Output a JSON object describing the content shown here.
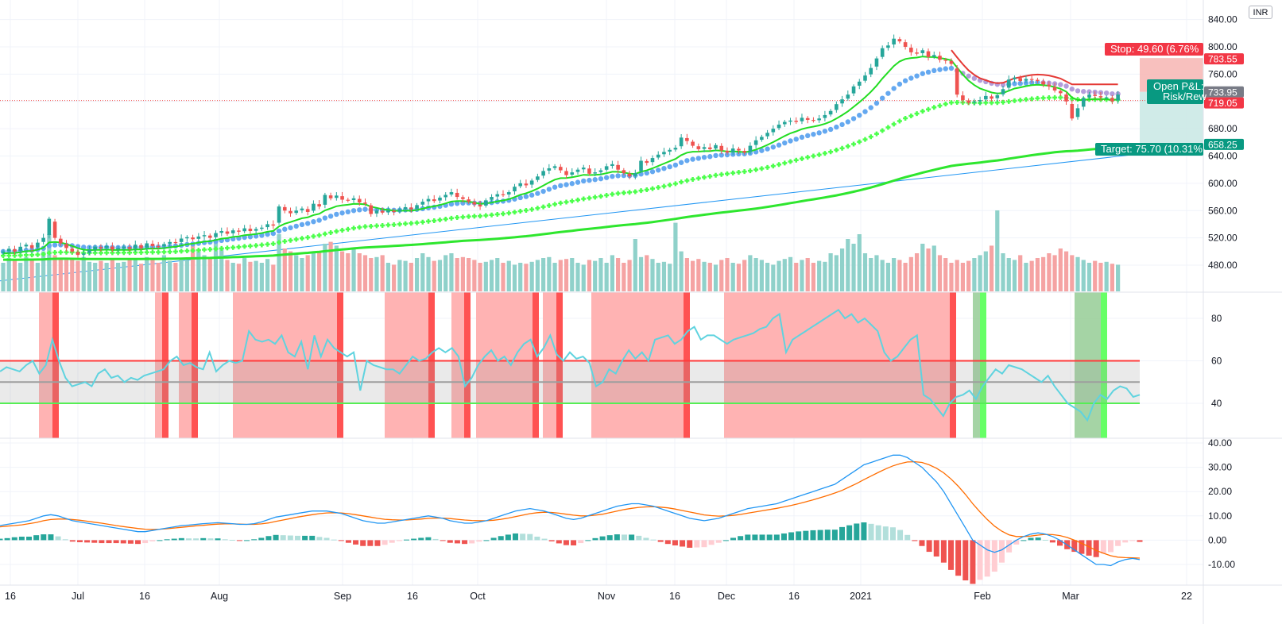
{
  "currency_label": "INR",
  "colors": {
    "up": "#26a69a",
    "down": "#ef5350",
    "up_candle": "#26a69a",
    "down_candle": "#ef5350",
    "band": "#ffb3b3",
    "band_dark": "#ff5252",
    "band_green": "#66ff66",
    "rsi_line": "#5fd3df",
    "macd_line": "#2196f3",
    "signal_line": "#ff6d00",
    "ema_green": "#2ee62e",
    "ema_blue": "#64a8f0",
    "trend_line": "#2196f3",
    "stop_fill": "#f7b9b7",
    "target_fill": "#cbe9e6",
    "tag_red": "#f23645",
    "tag_teal": "#089981"
  },
  "time_axis_labels": [
    "16",
    "Jul",
    "16",
    "Aug",
    "Sep",
    "16",
    "Oct",
    "Nov",
    "16",
    "Dec",
    "16",
    "2021",
    "Feb",
    "Mar",
    "22"
  ],
  "price_axis_labels": [
    "840.00",
    "800.00",
    "760.00",
    "720.00",
    "680.00",
    "640.00",
    "600.00",
    "560.00",
    "520.00",
    "480.00"
  ],
  "rsi_axis_labels": [
    "80",
    "60",
    "40"
  ],
  "macd_axis_labels": [
    "40.00",
    "30.00",
    "20.00",
    "10.00",
    "0.00",
    "-10.00"
  ],
  "position": {
    "stop_label": "Stop: 49.60 (6.76%",
    "target_label": "Target: 75.70 (10.31%",
    "open_pl_label": "Open P&L:",
    "risk_reward_label": "Risk/Rew",
    "stop_price": 783.55,
    "entry_price": 733.95,
    "current_price": 719.05,
    "target_price": 658.25
  },
  "price_tags": [
    "783.55",
    "733.95",
    "719.05",
    "658.25"
  ],
  "rsi_levels": {
    "upper": 60,
    "middle": 50,
    "lower": 40
  },
  "chart_data": [
    {
      "type": "candlestick",
      "title": "",
      "x_range": [
        "2020-06-16",
        "2021-03-22"
      ],
      "ylim": [
        455,
        845
      ],
      "closes": [
        500,
        504,
        500,
        507,
        510,
        505,
        513,
        520,
        548,
        520,
        512,
        505,
        500,
        495,
        497,
        502,
        507,
        505,
        508,
        503,
        505,
        507,
        504,
        510,
        505,
        512,
        508,
        507,
        511,
        514,
        513,
        519,
        521,
        518,
        522,
        524,
        520,
        527,
        530,
        526,
        531,
        529,
        534,
        530,
        533,
        535,
        540,
        538,
        566,
        560,
        556,
        560,
        563,
        558,
        570,
        566,
        583,
        578,
        582,
        576,
        575,
        578,
        572,
        570,
        555,
        560,
        557,
        560,
        558,
        562,
        565,
        562,
        568,
        573,
        577,
        574,
        579,
        583,
        587,
        580,
        577,
        573,
        569,
        566,
        575,
        580,
        584,
        583,
        587,
        595,
        600,
        597,
        604,
        610,
        618,
        622,
        625,
        619,
        612,
        616,
        620,
        623,
        614,
        616,
        619,
        625,
        628,
        620,
        615,
        610,
        615,
        633,
        630,
        637,
        642,
        646,
        649,
        652,
        667,
        662,
        655,
        650,
        653,
        650,
        656,
        648,
        645,
        651,
        648,
        645,
        655,
        663,
        668,
        674,
        680,
        686,
        690,
        692,
        690,
        696,
        693,
        692,
        695,
        700,
        706,
        716,
        723,
        730,
        742,
        749,
        758,
        769,
        783,
        798,
        802,
        812,
        808,
        800,
        792,
        790,
        795,
        785,
        788,
        781,
        780,
        775,
        730,
        722,
        718,
        720,
        722,
        728,
        724,
        729,
        738,
        752,
        755,
        750,
        753,
        752,
        750,
        745,
        742,
        736,
        732,
        720,
        695,
        710,
        725,
        730,
        728,
        726,
        726,
        720,
        730
      ],
      "volume_relative": [
        0.3,
        0.35,
        0.32,
        0.3,
        0.36,
        0.33,
        0.3,
        0.42,
        0.6,
        0.38,
        0.35,
        0.33,
        0.34,
        0.32,
        0.36,
        0.31,
        0.3,
        0.32,
        0.3,
        0.33,
        0.3,
        0.31,
        0.35,
        0.33,
        0.29,
        0.36,
        0.34,
        0.3,
        0.38,
        0.32,
        0.3,
        0.35,
        0.33,
        0.5,
        0.42,
        0.38,
        0.36,
        0.55,
        0.45,
        0.33,
        0.3,
        0.29,
        0.35,
        0.31,
        0.32,
        0.3,
        0.34,
        0.28,
        0.6,
        0.45,
        0.42,
        0.38,
        0.35,
        0.38,
        0.4,
        0.42,
        0.5,
        0.52,
        0.48,
        0.42,
        0.4,
        0.45,
        0.4,
        0.38,
        0.35,
        0.36,
        0.38,
        0.3,
        0.28,
        0.33,
        0.32,
        0.3,
        0.35,
        0.4,
        0.36,
        0.32,
        0.33,
        0.38,
        0.4,
        0.35,
        0.36,
        0.35,
        0.33,
        0.3,
        0.31,
        0.33,
        0.35,
        0.3,
        0.32,
        0.28,
        0.3,
        0.29,
        0.31,
        0.33,
        0.35,
        0.36,
        0.3,
        0.33,
        0.34,
        0.35,
        0.3,
        0.28,
        0.33,
        0.32,
        0.35,
        0.3,
        0.38,
        0.35,
        0.3,
        0.33,
        0.55,
        0.36,
        0.38,
        0.34,
        0.3,
        0.31,
        0.29,
        0.72,
        0.42,
        0.35,
        0.32,
        0.34,
        0.31,
        0.3,
        0.28,
        0.33,
        0.35,
        0.3,
        0.29,
        0.33,
        0.38,
        0.35,
        0.33,
        0.3,
        0.28,
        0.32,
        0.34,
        0.36,
        0.3,
        0.33,
        0.35,
        0.3,
        0.32,
        0.31,
        0.4,
        0.38,
        0.45,
        0.55,
        0.5,
        0.6,
        0.4,
        0.35,
        0.38,
        0.33,
        0.3,
        0.35,
        0.33,
        0.3,
        0.36,
        0.4,
        0.5,
        0.45,
        0.48,
        0.38,
        0.35,
        0.3,
        0.33,
        0.3,
        0.32,
        0.35,
        0.38,
        0.42,
        0.48,
        0.85,
        0.4,
        0.35,
        0.33,
        0.38,
        0.3,
        0.32,
        0.35,
        0.36,
        0.4,
        0.38,
        0.45,
        0.42,
        0.38,
        0.36,
        0.33,
        0.3,
        0.32,
        0.3,
        0.31,
        0.29,
        0.28
      ]
    },
    {
      "type": "line",
      "title": "",
      "ylim": [
        25,
        95
      ],
      "series_name": "",
      "values": [
        55,
        57,
        56,
        55,
        58,
        60,
        54,
        58,
        70,
        60,
        52,
        48,
        49,
        50,
        48,
        54,
        56,
        52,
        53,
        50,
        52,
        51,
        53,
        54,
        55,
        56,
        60,
        62,
        58,
        59,
        57,
        56,
        64,
        55,
        58,
        60,
        59,
        60,
        74,
        70,
        69,
        70,
        68,
        72,
        64,
        62,
        69,
        56,
        72,
        62,
        70,
        66,
        64,
        62,
        64,
        46,
        60,
        58,
        57,
        56,
        56,
        54,
        58,
        62,
        60,
        61,
        64,
        66,
        64,
        66,
        62,
        48,
        52,
        58,
        62,
        65,
        60,
        62,
        58,
        64,
        68,
        70,
        62,
        66,
        72,
        63,
        60,
        64,
        61,
        62,
        59,
        48,
        50,
        56,
        54,
        60,
        65,
        61,
        64,
        60,
        70,
        71,
        72,
        68,
        70,
        74,
        76,
        70,
        72,
        72,
        70,
        68,
        70,
        71,
        72,
        73,
        75,
        76,
        80,
        82,
        64,
        70,
        72,
        74,
        76,
        78,
        80,
        82,
        84,
        80,
        82,
        78,
        80,
        77,
        74,
        64,
        60,
        62,
        66,
        70,
        72,
        44,
        42,
        38,
        34,
        40,
        43,
        44,
        46,
        42,
        48,
        52,
        56,
        54,
        58,
        57,
        56,
        54,
        52,
        50,
        53,
        48,
        44,
        40,
        38,
        36,
        32,
        40,
        44,
        42,
        46,
        48,
        47,
        43,
        44
      ],
      "overbought_level": 60,
      "middle_level": 50,
      "oversold_level": 40
    },
    {
      "type": "line",
      "title": "",
      "ylim": [
        -15,
        40
      ],
      "series": [
        {
          "name": "",
          "values": [
            6,
            6.5,
            7,
            7.5,
            8,
            9,
            10,
            10.5,
            10,
            9,
            8,
            7.5,
            7,
            6.5,
            6,
            5.5,
            5,
            4.5,
            4,
            3.5,
            3.5,
            4,
            4.5,
            5,
            5.5,
            6,
            6.2,
            6.5,
            6.8,
            7,
            7.2,
            7,
            6.8,
            6.5,
            6.5,
            6.8,
            7.5,
            8.5,
            9.5,
            10,
            10.5,
            11,
            11.5,
            12,
            12,
            12,
            11.5,
            11,
            10,
            9,
            8,
            7.5,
            7,
            7,
            7.5,
            8,
            8.5,
            9,
            9.5,
            10,
            9.5,
            9,
            8,
            7.5,
            7,
            7,
            7.5,
            8,
            9,
            10,
            11,
            12,
            12.5,
            13,
            12.5,
            12,
            11,
            10,
            9,
            8.5,
            9,
            10,
            11,
            12,
            13,
            14,
            14.5,
            15,
            15,
            14.5,
            14,
            13,
            12,
            11,
            10,
            9,
            8.5,
            8,
            8.5,
            9,
            10,
            11,
            12,
            13,
            13.5,
            14,
            14.5,
            15,
            16,
            17,
            18,
            19,
            20,
            21,
            22,
            23,
            25,
            27,
            29,
            31,
            32,
            33,
            34,
            35,
            35,
            34,
            32,
            30,
            27,
            24,
            20,
            15,
            10,
            5,
            0,
            -2,
            -4,
            -5,
            -4,
            -2,
            0,
            1.5,
            2.5,
            3,
            2.5,
            1.5,
            0,
            -2,
            -4,
            -6,
            -8,
            -10,
            -10,
            -10.5,
            -9,
            -8,
            -7.5,
            -8
          ]
        },
        {
          "name": "",
          "values": [
            5.5,
            5.8,
            6,
            6.3,
            6.8,
            7.3,
            8,
            8.5,
            8.7,
            8.7,
            8.5,
            8.2,
            7.8,
            7.4,
            7,
            6.5,
            6,
            5.6,
            5.2,
            4.8,
            4.5,
            4.4,
            4.5,
            4.7,
            5,
            5.3,
            5.6,
            5.9,
            6.1,
            6.4,
            6.6,
            6.7,
            6.7,
            6.6,
            6.5,
            6.5,
            6.7,
            7.1,
            7.7,
            8.3,
            8.9,
            9.5,
            10,
            10.5,
            10.9,
            11.2,
            11.3,
            11.2,
            10.9,
            10.5,
            10,
            9.5,
            9,
            8.6,
            8.4,
            8.3,
            8.3,
            8.5,
            8.7,
            9,
            9.1,
            9.1,
            8.9,
            8.6,
            8.3,
            8.1,
            8,
            8,
            8.2,
            8.6,
            9.1,
            9.7,
            10.3,
            10.9,
            11.3,
            11.5,
            11.4,
            11.1,
            10.7,
            10.3,
            10,
            10,
            10.3,
            10.7,
            11.3,
            12,
            12.6,
            13.1,
            13.5,
            13.7,
            13.8,
            13.6,
            13.3,
            12.8,
            12.2,
            11.6,
            11,
            10.4,
            10.1,
            9.9,
            10,
            10.2,
            10.6,
            11.1,
            11.6,
            12.1,
            12.6,
            13.1,
            13.7,
            14.3,
            15,
            15.8,
            16.6,
            17.5,
            18.4,
            19.4,
            20.5,
            21.9,
            23.3,
            24.9,
            26.4,
            27.9,
            29.3,
            30.6,
            31.5,
            32.2,
            32.3,
            32,
            31,
            29.6,
            27.7,
            25.2,
            22.2,
            18.8,
            15,
            11.6,
            8.5,
            5.8,
            3.7,
            2.2,
            1.5,
            1.5,
            1.7,
            2.1,
            2.4,
            2.3,
            1.9,
            1.1,
            0,
            -1.3,
            -2.7,
            -4.2,
            -5.4,
            -6.4,
            -7,
            -7.2,
            -7.3,
            -7.4
          ]
        }
      ]
    }
  ]
}
